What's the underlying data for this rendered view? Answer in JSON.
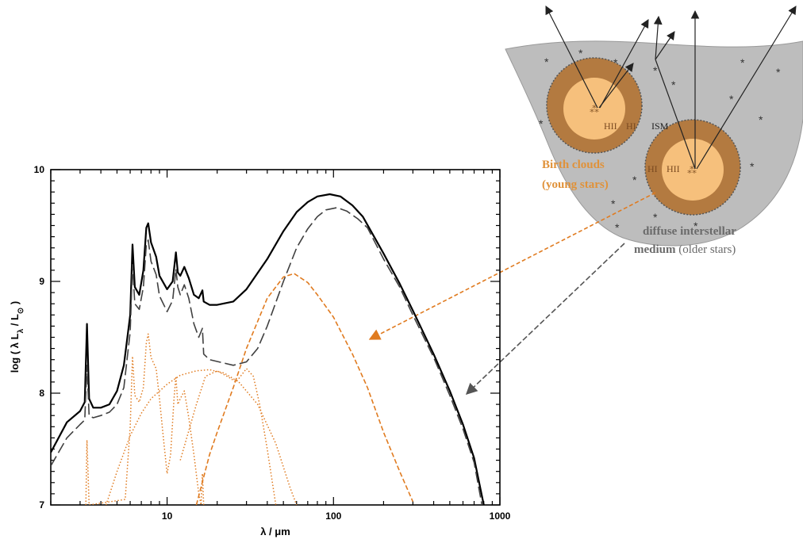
{
  "chart_data": {
    "type": "line",
    "title": "",
    "xlabel": "λ / μm",
    "ylabel": "log ( λ L_λ / L_⊙ )",
    "x_scale": "log",
    "xlim": [
      2,
      1000
    ],
    "ylim": [
      7,
      10
    ],
    "x_ticks": [
      {
        "value": 10,
        "label": "10"
      },
      {
        "value": 100,
        "label": "100"
      },
      {
        "value": 1000,
        "label": "1000"
      }
    ],
    "y_ticks": [
      {
        "value": 7,
        "label": "7"
      },
      {
        "value": 8,
        "label": "8"
      },
      {
        "value": 9,
        "label": "9"
      },
      {
        "value": 10,
        "label": "10"
      }
    ],
    "grid": false,
    "legend": "none",
    "series": [
      {
        "style": "solid",
        "color": "#000000",
        "points": [
          [
            2.0,
            7.47
          ],
          [
            2.5,
            7.74
          ],
          [
            3.0,
            7.84
          ],
          [
            3.2,
            7.92
          ],
          [
            3.3,
            8.62
          ],
          [
            3.4,
            7.95
          ],
          [
            3.6,
            7.87
          ],
          [
            4.0,
            7.87
          ],
          [
            4.5,
            7.9
          ],
          [
            5.0,
            8.02
          ],
          [
            5.5,
            8.25
          ],
          [
            6.0,
            8.7
          ],
          [
            6.2,
            9.33
          ],
          [
            6.4,
            8.95
          ],
          [
            6.8,
            8.88
          ],
          [
            7.2,
            9.1
          ],
          [
            7.5,
            9.48
          ],
          [
            7.7,
            9.52
          ],
          [
            8.0,
            9.35
          ],
          [
            8.6,
            9.22
          ],
          [
            9.0,
            9.05
          ],
          [
            10.0,
            8.93
          ],
          [
            10.8,
            9.0
          ],
          [
            11.3,
            9.26
          ],
          [
            11.6,
            9.08
          ],
          [
            12.0,
            9.05
          ],
          [
            12.7,
            9.13
          ],
          [
            13.5,
            9.03
          ],
          [
            14.5,
            8.88
          ],
          [
            15.5,
            8.85
          ],
          [
            16.3,
            8.92
          ],
          [
            16.6,
            8.82
          ],
          [
            18.0,
            8.79
          ],
          [
            20.0,
            8.79
          ],
          [
            25.0,
            8.82
          ],
          [
            30.0,
            8.93
          ],
          [
            40.0,
            9.2
          ],
          [
            50.0,
            9.45
          ],
          [
            60.0,
            9.62
          ],
          [
            70.0,
            9.71
          ],
          [
            80.0,
            9.76
          ],
          [
            95.0,
            9.78
          ],
          [
            110.0,
            9.76
          ],
          [
            130.0,
            9.68
          ],
          [
            150.0,
            9.58
          ],
          [
            200.0,
            9.25
          ],
          [
            250.0,
            8.98
          ],
          [
            300.0,
            8.74
          ],
          [
            400.0,
            8.35
          ],
          [
            500.0,
            8.02
          ],
          [
            600.0,
            7.72
          ],
          [
            700.0,
            7.42
          ],
          [
            800.0,
            7.0
          ]
        ]
      },
      {
        "style": "long-dash",
        "color": "#404040",
        "points": [
          [
            2.0,
            7.35
          ],
          [
            2.5,
            7.6
          ],
          [
            3.0,
            7.72
          ],
          [
            3.2,
            7.76
          ],
          [
            3.3,
            8.25
          ],
          [
            3.4,
            7.8
          ],
          [
            3.6,
            7.78
          ],
          [
            4.0,
            7.8
          ],
          [
            4.5,
            7.83
          ],
          [
            5.0,
            7.9
          ],
          [
            5.5,
            8.05
          ],
          [
            6.0,
            8.55
          ],
          [
            6.2,
            9.15
          ],
          [
            6.4,
            8.8
          ],
          [
            6.8,
            8.75
          ],
          [
            7.2,
            8.95
          ],
          [
            7.5,
            9.33
          ],
          [
            7.7,
            9.37
          ],
          [
            8.0,
            9.18
          ],
          [
            8.6,
            9.06
          ],
          [
            9.0,
            8.87
          ],
          [
            10.0,
            8.73
          ],
          [
            10.8,
            8.83
          ],
          [
            11.3,
            9.11
          ],
          [
            11.6,
            8.95
          ],
          [
            12.0,
            8.88
          ],
          [
            12.7,
            8.97
          ],
          [
            13.5,
            8.85
          ],
          [
            14.5,
            8.62
          ],
          [
            15.5,
            8.5
          ],
          [
            16.3,
            8.58
          ],
          [
            16.6,
            8.35
          ],
          [
            18.0,
            8.3
          ],
          [
            25.0,
            8.25
          ],
          [
            30.0,
            8.28
          ],
          [
            35.0,
            8.4
          ],
          [
            40.0,
            8.6
          ],
          [
            50.0,
            9.0
          ],
          [
            60.0,
            9.3
          ],
          [
            70.0,
            9.47
          ],
          [
            80.0,
            9.58
          ],
          [
            90.0,
            9.64
          ],
          [
            105.0,
            9.66
          ],
          [
            120.0,
            9.63
          ],
          [
            140.0,
            9.56
          ],
          [
            160.0,
            9.48
          ],
          [
            200.0,
            9.2
          ],
          [
            250.0,
            8.95
          ],
          [
            300.0,
            8.7
          ],
          [
            400.0,
            8.32
          ],
          [
            500.0,
            7.98
          ],
          [
            600.0,
            7.68
          ],
          [
            700.0,
            7.38
          ],
          [
            780.0,
            7.0
          ]
        ]
      },
      {
        "style": "dashed",
        "color": "#E07B20",
        "points": [
          [
            15.0,
            7.0
          ],
          [
            18.0,
            7.45
          ],
          [
            20.0,
            7.65
          ],
          [
            25.0,
            8.05
          ],
          [
            30.0,
            8.4
          ],
          [
            40.0,
            8.85
          ],
          [
            50.0,
            9.04
          ],
          [
            58.0,
            9.07
          ],
          [
            70.0,
            8.99
          ],
          [
            80.0,
            8.88
          ],
          [
            100.0,
            8.68
          ],
          [
            130.0,
            8.35
          ],
          [
            160.0,
            8.05
          ],
          [
            200.0,
            7.65
          ],
          [
            250.0,
            7.3
          ],
          [
            300.0,
            7.03
          ]
        ]
      },
      {
        "style": "dotted",
        "color": "#E07B20",
        "points": [
          [
            4.3,
            7.0
          ],
          [
            5.0,
            7.3
          ],
          [
            6.0,
            7.62
          ],
          [
            7.0,
            7.82
          ],
          [
            8.0,
            7.95
          ],
          [
            10.0,
            8.08
          ],
          [
            12.0,
            8.16
          ],
          [
            15.0,
            8.2
          ],
          [
            18.0,
            8.21
          ],
          [
            22.0,
            8.18
          ],
          [
            27.0,
            8.1
          ],
          [
            35.0,
            7.9
          ],
          [
            45.0,
            7.55
          ],
          [
            55.0,
            7.15
          ],
          [
            60.0,
            7.0
          ]
        ]
      },
      {
        "style": "dotted",
        "color": "#E07B20",
        "points": [
          [
            3.25,
            7.0
          ],
          [
            3.3,
            7.58
          ],
          [
            3.4,
            7.0
          ],
          [
            5.6,
            7.05
          ],
          [
            6.0,
            7.7
          ],
          [
            6.2,
            8.33
          ],
          [
            6.4,
            7.98
          ],
          [
            6.8,
            7.92
          ],
          [
            7.2,
            8.05
          ],
          [
            7.5,
            8.45
          ],
          [
            7.7,
            8.53
          ],
          [
            8.0,
            8.32
          ],
          [
            8.6,
            8.22
          ],
          [
            9.0,
            7.95
          ],
          [
            9.5,
            7.6
          ],
          [
            10.0,
            7.28
          ],
          [
            10.5,
            7.45
          ],
          [
            11.0,
            7.95
          ],
          [
            11.3,
            8.15
          ],
          [
            11.6,
            7.9
          ],
          [
            12.0,
            7.95
          ],
          [
            12.7,
            8.02
          ],
          [
            13.5,
            7.78
          ],
          [
            14.5,
            7.45
          ],
          [
            15.5,
            7.1
          ],
          [
            16.0,
            7.0
          ],
          [
            16.3,
            7.28
          ],
          [
            16.6,
            7.0
          ]
        ]
      },
      {
        "style": "dotted",
        "color": "#E07B20",
        "points": [
          [
            12.0,
            7.4
          ],
          [
            15.0,
            7.9
          ],
          [
            17.0,
            8.15
          ],
          [
            20.0,
            8.2
          ],
          [
            23.0,
            8.15
          ],
          [
            26.0,
            8.1
          ],
          [
            30.0,
            8.22
          ],
          [
            33.0,
            8.15
          ],
          [
            36.0,
            7.9
          ],
          [
            40.0,
            7.5
          ],
          [
            45.0,
            7.0
          ]
        ]
      }
    ],
    "diagram": {
      "ism_label": "ISM",
      "birth_cloud_hii_label": "HII",
      "birth_cloud_hi_label": "HI",
      "birth_clouds_label_line1": "Birth clouds",
      "birth_clouds_label_line2": "(young stars)",
      "diffuse_label_line1": "diffuse interstellar",
      "diffuse_label_line2_bold": "medium",
      "diffuse_label_line2_rest": " (older stars)",
      "colors": {
        "ism_fill": "#bdbdbd",
        "cloud_outer": "#b37a40",
        "cloud_inner": "#f6c07c",
        "birth_arrow": "#E07B20",
        "diffuse_arrow": "#555555",
        "birth_label": "#E0923A",
        "diffuse_label": "#6a6a6a"
      }
    }
  }
}
